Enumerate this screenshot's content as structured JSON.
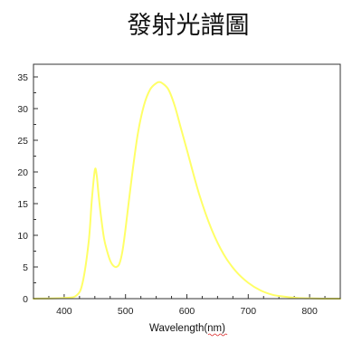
{
  "chart_data": {
    "type": "line",
    "title": "發射光譜圖",
    "xlabel": "Wavelength(nm)",
    "ylabel": "",
    "xlim": [
      350,
      850
    ],
    "ylim": [
      0,
      37
    ],
    "xticks": [
      400,
      500,
      600,
      700,
      800
    ],
    "yticks": [
      0,
      5,
      10,
      15,
      20,
      25,
      30,
      35
    ],
    "grid": false,
    "legend": "none",
    "colors": {
      "line": "#ffff66",
      "axes": "#333333",
      "background": "#ffffff"
    },
    "series": [
      {
        "x": [
          350,
          400,
          420,
          430,
          440,
          445,
          450,
          453,
          456,
          460,
          465,
          470,
          475,
          480,
          485,
          490,
          495,
          500,
          510,
          520,
          530,
          540,
          550,
          555,
          560,
          570,
          580,
          590,
          600,
          620,
          640,
          660,
          680,
          700,
          720,
          740,
          760,
          780,
          800,
          820,
          850
        ],
        "y": [
          0,
          0.1,
          0.5,
          2.5,
          9,
          15.5,
          20.3,
          19.5,
          16.5,
          13,
          9.5,
          7.5,
          6,
          5.2,
          5,
          5.5,
          7.5,
          11,
          19,
          26,
          30.5,
          33,
          34,
          34.2,
          34,
          33,
          30.5,
          27,
          23.5,
          16.5,
          11,
          7,
          4.3,
          2.5,
          1.3,
          0.6,
          0.3,
          0.1,
          0.05,
          0,
          0
        ]
      }
    ]
  }
}
